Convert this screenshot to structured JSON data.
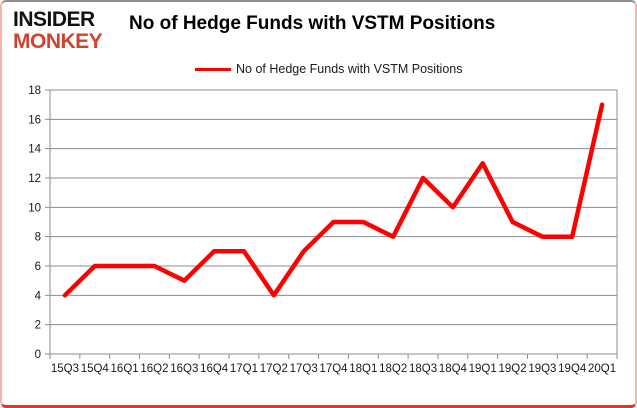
{
  "branding": {
    "logo_line1": "INSIDER",
    "logo_line2": "MONKEY",
    "logo_color1": "#121212",
    "logo_color2": "#d0432e"
  },
  "header": {
    "title": "No of Hedge Funds with VSTM Positions"
  },
  "legend": {
    "label": "No of Hedge Funds with VSTM Positions",
    "line_color": "#ff0000"
  },
  "chart_data": {
    "type": "line",
    "title": "No of Hedge Funds with VSTM Positions",
    "categories": [
      "15Q3",
      "15Q4",
      "16Q1",
      "16Q2",
      "16Q3",
      "16Q4",
      "17Q1",
      "17Q2",
      "17Q3",
      "17Q4",
      "18Q1",
      "18Q2",
      "18Q3",
      "18Q4",
      "19Q1",
      "19Q2",
      "19Q3",
      "19Q4",
      "20Q1"
    ],
    "series": [
      {
        "name": "No of Hedge Funds with VSTM Positions",
        "color": "#ff0000",
        "values": [
          4,
          6,
          6,
          6,
          5,
          7,
          7,
          4,
          7,
          9,
          9,
          8,
          12,
          10,
          13,
          9,
          8,
          8,
          17
        ]
      }
    ],
    "xlabel": "",
    "ylabel": "",
    "ylim": [
      0,
      18
    ],
    "yticks": [
      0,
      2,
      4,
      6,
      8,
      10,
      12,
      14,
      16,
      18
    ],
    "grid": true,
    "gridline_color": "#8c8c8c",
    "axis_color": "#8c8c8c",
    "tick_label_color": "#1a1a1a",
    "legend_position": "top-center"
  }
}
